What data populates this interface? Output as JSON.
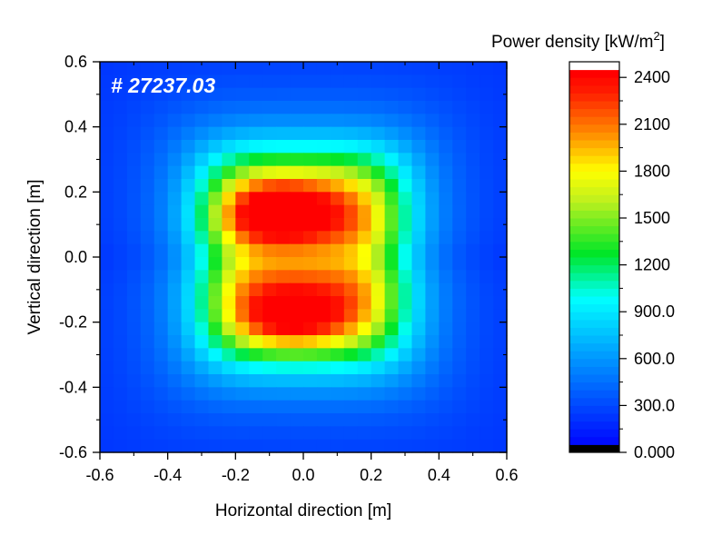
{
  "chart_data": {
    "type": "heatmap",
    "annotation": "# 27237.03",
    "xlabel": "Horizontal direction [m]",
    "ylabel": "Vertical direction [m]",
    "xlim": [
      -0.6,
      0.6
    ],
    "ylim": [
      -0.6,
      0.6
    ],
    "x_ticks": [
      "-0.6",
      "-0.4",
      "-0.2",
      "0.0",
      "0.2",
      "0.4",
      "0.6"
    ],
    "y_ticks": [
      "-0.6",
      "-0.4",
      "-0.2",
      "0.0",
      "0.2",
      "0.4",
      "0.6"
    ],
    "colorbar": {
      "title": "Power density [kW/m",
      "title_sup": "2",
      "title_end": "]",
      "range": [
        0,
        2500
      ],
      "ticks": [
        {
          "label": "0.000",
          "value": 0
        },
        {
          "label": "300.0",
          "value": 300
        },
        {
          "label": "600.0",
          "value": 600
        },
        {
          "label": "900.0",
          "value": 900
        },
        {
          "label": "1200",
          "value": 1200
        },
        {
          "label": "1500",
          "value": 1500
        },
        {
          "label": "1800",
          "value": 1800
        },
        {
          "label": "2100",
          "value": 2100
        },
        {
          "label": "2400",
          "value": 2400
        }
      ]
    },
    "grid": {
      "nx": 30,
      "ny": 30,
      "description": "Power density (kW/m^2) on 30x30 cells spanning x,y in [-0.6,0.6] m; rectangular hot zone ~|x|<0.3, |y|<0.3 with two peaks near y=+0.15 and y=-0.18",
      "peaks": [
        {
          "x": -0.07,
          "y": 0.14,
          "value": 2300
        },
        {
          "x": -0.03,
          "y": -0.19,
          "value": 2200
        }
      ],
      "center_value": 1900,
      "edge_value": 180
    }
  }
}
